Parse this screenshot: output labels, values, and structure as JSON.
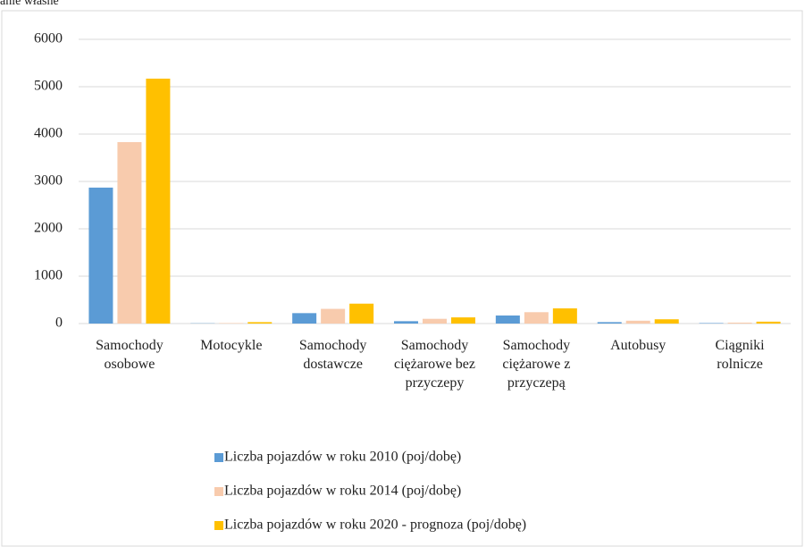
{
  "source": "anie własne",
  "chart_data": {
    "type": "bar",
    "categories": [
      "Samochody osobowe",
      "Motocykle",
      "Samochody dostawcze",
      "Samochody ciężarowe bez przyczepy",
      "Samochody ciężarowe z przyczepą",
      "Autobusy",
      "Ciągniki rolnicze"
    ],
    "series": [
      {
        "name": "Liczba pojazdów w roku 2010 (poj/dobę)",
        "color": "#5b9bd5",
        "values": [
          2870,
          5,
          220,
          50,
          170,
          30,
          10
        ]
      },
      {
        "name": "Liczba pojazdów w roku 2014 (poj/dobę)",
        "color": "#f8cbad",
        "values": [
          3830,
          10,
          310,
          100,
          240,
          60,
          20
        ]
      },
      {
        "name": "Liczba pojazdów w roku 2020 - prognoza (poj/dobę)",
        "color": "#ffc000",
        "values": [
          5170,
          30,
          420,
          130,
          320,
          90,
          40
        ]
      }
    ],
    "ylim": [
      0,
      6000
    ],
    "yticks": [
      0,
      1000,
      2000,
      3000,
      4000,
      5000,
      6000
    ],
    "grid": true,
    "legend": "bottom"
  }
}
